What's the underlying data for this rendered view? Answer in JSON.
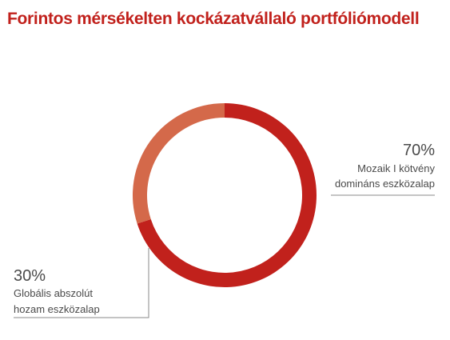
{
  "title": "Forintos mérsékelten kockázatvállaló portfóliómodell",
  "colors": {
    "title": "#c1211c",
    "primary_slice": "#c1211c",
    "secondary_slice": "#d4694a",
    "text": "#4a4a4a",
    "leader_line": "#8a8a8a"
  },
  "chart_data": {
    "type": "pie",
    "title": "Forintos mérsékelten kockázatvállaló portfóliómodell",
    "donut": true,
    "slices": [
      {
        "percent_label": "70%",
        "value": 70,
        "label_lines": [
          "Mozaik I kötvény",
          "domináns eszközalap"
        ],
        "color": "#c1211c",
        "label_side": "right"
      },
      {
        "percent_label": "30%",
        "value": 30,
        "label_lines": [
          "Globális abszolút",
          "hozam eszközalap"
        ],
        "color": "#d4694a",
        "label_side": "left"
      }
    ]
  }
}
